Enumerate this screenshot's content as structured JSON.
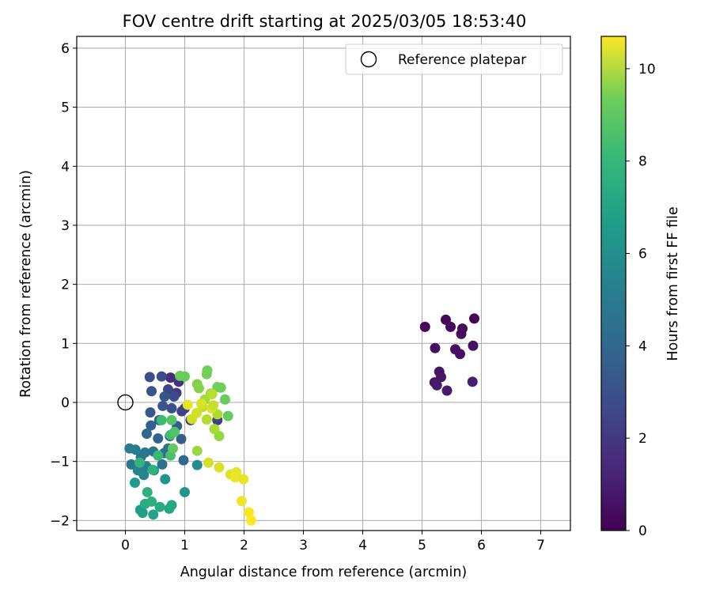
{
  "chart_data": {
    "type": "scatter",
    "title": "FOV centre drift starting at 2025/03/05 18:53:40",
    "xlabel": "Angular distance from reference (arcmin)",
    "ylabel": "Rotation from reference (arcmin)",
    "xlim": [
      -0.82,
      7.5
    ],
    "ylim": [
      -2.17,
      6.2
    ],
    "xticks": [
      0,
      1,
      2,
      3,
      4,
      5,
      6,
      7
    ],
    "yticks": [
      -2,
      -1,
      0,
      1,
      2,
      3,
      4,
      5,
      6
    ],
    "grid": true,
    "legend": {
      "placement": "top-right",
      "entries": [
        "Reference platepar"
      ]
    },
    "reference_point": {
      "label": "Reference platepar",
      "x": 0,
      "y": 0
    },
    "colorbar": {
      "label": "Hours from first FF file",
      "colormap": "viridis",
      "range": [
        0,
        10.7
      ],
      "ticks": [
        0,
        2,
        4,
        6,
        8,
        10
      ]
    },
    "points": [
      {
        "x": 5.05,
        "y": 1.28,
        "c": 0.15
      },
      {
        "x": 5.4,
        "y": 1.4,
        "c": 0.2
      },
      {
        "x": 5.48,
        "y": 1.28,
        "c": 0.25
      },
      {
        "x": 5.68,
        "y": 1.25,
        "c": 0.3
      },
      {
        "x": 5.88,
        "y": 1.42,
        "c": 0.1
      },
      {
        "x": 5.66,
        "y": 1.16,
        "c": 0.35
      },
      {
        "x": 5.22,
        "y": 0.92,
        "c": 0.4
      },
      {
        "x": 5.56,
        "y": 0.9,
        "c": 0.45
      },
      {
        "x": 5.64,
        "y": 0.82,
        "c": 0.5
      },
      {
        "x": 5.86,
        "y": 0.96,
        "c": 0.55
      },
      {
        "x": 5.29,
        "y": 0.52,
        "c": 0.6
      },
      {
        "x": 5.32,
        "y": 0.43,
        "c": 0.65
      },
      {
        "x": 5.21,
        "y": 0.34,
        "c": 0.7
      },
      {
        "x": 5.25,
        "y": 0.29,
        "c": 0.75
      },
      {
        "x": 5.42,
        "y": 0.2,
        "c": 0.8
      },
      {
        "x": 5.85,
        "y": 0.35,
        "c": 0.9
      },
      {
        "x": 0.76,
        "y": 0.42,
        "c": 1.4
      },
      {
        "x": 0.9,
        "y": 0.35,
        "c": 1.6
      },
      {
        "x": 0.86,
        "y": 0.16,
        "c": 1.8
      },
      {
        "x": 1.0,
        "y": -0.1,
        "c": 1.9
      },
      {
        "x": 1.1,
        "y": -0.3,
        "c": 1.7
      },
      {
        "x": 1.55,
        "y": -0.3,
        "c": 2.0
      },
      {
        "x": 0.72,
        "y": 0.22,
        "c": 2.2
      },
      {
        "x": 0.95,
        "y": -0.15,
        "c": 2.1
      },
      {
        "x": 0.41,
        "y": 0.43,
        "c": 2.6
      },
      {
        "x": 0.61,
        "y": 0.44,
        "c": 2.5
      },
      {
        "x": 0.44,
        "y": 0.19,
        "c": 2.7
      },
      {
        "x": 0.66,
        "y": 0.1,
        "c": 2.8
      },
      {
        "x": 0.82,
        "y": 0.1,
        "c": 2.4
      },
      {
        "x": 0.63,
        "y": -0.06,
        "c": 2.9
      },
      {
        "x": 0.78,
        "y": -0.1,
        "c": 2.6
      },
      {
        "x": 0.42,
        "y": -0.17,
        "c": 3.0
      },
      {
        "x": 0.87,
        "y": -0.4,
        "c": 3.1
      },
      {
        "x": 0.57,
        "y": -0.3,
        "c": 3.2
      },
      {
        "x": 0.43,
        "y": -0.39,
        "c": 3.3
      },
      {
        "x": 0.94,
        "y": -0.62,
        "c": 3.2
      },
      {
        "x": 0.36,
        "y": -0.53,
        "c": 3.5
      },
      {
        "x": 0.55,
        "y": -0.61,
        "c": 3.4
      },
      {
        "x": 0.75,
        "y": -0.57,
        "c": 3.3
      },
      {
        "x": 0.72,
        "y": -0.78,
        "c": 3.8
      },
      {
        "x": 0.47,
        "y": -0.83,
        "c": 4.0
      },
      {
        "x": 0.65,
        "y": -0.86,
        "c": 3.9
      },
      {
        "x": 0.98,
        "y": -0.98,
        "c": 3.6
      },
      {
        "x": 0.26,
        "y": -0.93,
        "c": 4.1
      },
      {
        "x": 0.33,
        "y": -0.85,
        "c": 4.2
      },
      {
        "x": 0.62,
        "y": -1.05,
        "c": 4.0
      },
      {
        "x": 0.1,
        "y": -1.05,
        "c": 4.3
      },
      {
        "x": 0.07,
        "y": -0.78,
        "c": 4.5
      },
      {
        "x": 0.17,
        "y": -0.8,
        "c": 4.6
      },
      {
        "x": 0.35,
        "y": -1.08,
        "c": 4.7
      },
      {
        "x": 0.21,
        "y": -1.15,
        "c": 4.8
      },
      {
        "x": 0.31,
        "y": -1.23,
        "c": 4.9
      },
      {
        "x": 0.48,
        "y": -1.15,
        "c": 5.0
      },
      {
        "x": 1.21,
        "y": -1.06,
        "c": 5.2
      },
      {
        "x": 0.67,
        "y": -1.3,
        "c": 5.5
      },
      {
        "x": 1.0,
        "y": -1.52,
        "c": 5.6
      },
      {
        "x": 0.16,
        "y": -1.36,
        "c": 5.8
      },
      {
        "x": 0.25,
        "y": -1.82,
        "c": 6.0
      },
      {
        "x": 0.29,
        "y": -1.87,
        "c": 6.0
      },
      {
        "x": 0.47,
        "y": -1.9,
        "c": 6.2
      },
      {
        "x": 0.74,
        "y": -1.8,
        "c": 6.3
      },
      {
        "x": 0.78,
        "y": -1.74,
        "c": 6.4
      },
      {
        "x": 0.58,
        "y": -1.77,
        "c": 6.5
      },
      {
        "x": 0.33,
        "y": -1.72,
        "c": 6.6
      },
      {
        "x": 0.44,
        "y": -1.68,
        "c": 6.7
      },
      {
        "x": 0.37,
        "y": -1.52,
        "c": 6.8
      },
      {
        "x": 0.46,
        "y": -1.14,
        "c": 6.9
      },
      {
        "x": 0.24,
        "y": -1.02,
        "c": 7.0
      },
      {
        "x": 0.55,
        "y": -0.9,
        "c": 7.2
      },
      {
        "x": 0.61,
        "y": -0.3,
        "c": 7.3
      },
      {
        "x": 0.76,
        "y": -0.55,
        "c": 7.4
      },
      {
        "x": 0.76,
        "y": -0.9,
        "c": 7.6
      },
      {
        "x": 0.83,
        "y": -0.5,
        "c": 7.7
      },
      {
        "x": 0.78,
        "y": -0.3,
        "c": 7.8
      },
      {
        "x": 0.8,
        "y": -0.78,
        "c": 8.0
      },
      {
        "x": 0.92,
        "y": 0.45,
        "c": 8.2
      },
      {
        "x": 1.0,
        "y": 0.44,
        "c": 8.2
      },
      {
        "x": 1.38,
        "y": 0.54,
        "c": 8.3
      },
      {
        "x": 1.37,
        "y": 0.48,
        "c": 8.4
      },
      {
        "x": 1.21,
        "y": 0.31,
        "c": 8.6
      },
      {
        "x": 1.24,
        "y": 0.24,
        "c": 8.7
      },
      {
        "x": 1.55,
        "y": 0.26,
        "c": 8.4
      },
      {
        "x": 1.61,
        "y": 0.25,
        "c": 8.3
      },
      {
        "x": 1.68,
        "y": 0.05,
        "c": 8.2
      },
      {
        "x": 1.73,
        "y": -0.23,
        "c": 8.1
      },
      {
        "x": 1.44,
        "y": 0.15,
        "c": 8.8
      },
      {
        "x": 1.34,
        "y": 0.05,
        "c": 9.2
      },
      {
        "x": 1.58,
        "y": -0.57,
        "c": 9.0
      },
      {
        "x": 1.21,
        "y": -0.82,
        "c": 9.1
      },
      {
        "x": 1.5,
        "y": -0.45,
        "c": 9.3
      },
      {
        "x": 1.55,
        "y": -0.2,
        "c": 9.4
      },
      {
        "x": 1.46,
        "y": 0.14,
        "c": 9.6
      },
      {
        "x": 1.3,
        "y": -0.08,
        "c": 9.7
      },
      {
        "x": 1.12,
        "y": -0.28,
        "c": 9.9
      },
      {
        "x": 1.2,
        "y": -0.18,
        "c": 10.0
      },
      {
        "x": 1.37,
        "y": -0.29,
        "c": 9.5
      },
      {
        "x": 1.45,
        "y": -0.1,
        "c": 10.2
      },
      {
        "x": 1.28,
        "y": -0.02,
        "c": 10.1
      },
      {
        "x": 1.05,
        "y": -0.04,
        "c": 10.3
      },
      {
        "x": 1.48,
        "y": -0.05,
        "c": 9.8
      },
      {
        "x": 1.4,
        "y": -1.02,
        "c": 10.0
      },
      {
        "x": 1.58,
        "y": -1.1,
        "c": 10.1
      },
      {
        "x": 1.77,
        "y": -1.22,
        "c": 10.2
      },
      {
        "x": 1.87,
        "y": -1.18,
        "c": 10.3
      },
      {
        "x": 1.85,
        "y": -1.27,
        "c": 10.4
      },
      {
        "x": 1.99,
        "y": -1.3,
        "c": 10.3
      },
      {
        "x": 1.96,
        "y": -1.67,
        "c": 10.5
      },
      {
        "x": 2.08,
        "y": -1.86,
        "c": 10.6
      },
      {
        "x": 2.12,
        "y": -2.0,
        "c": 10.7
      }
    ]
  }
}
